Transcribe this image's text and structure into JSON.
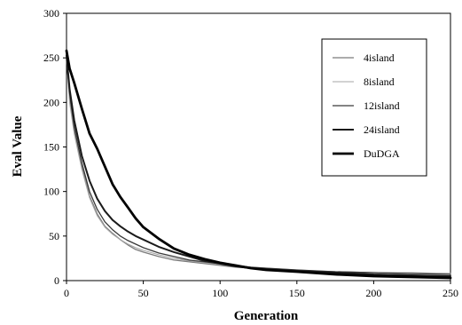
{
  "chart_data": {
    "type": "line",
    "xlabel": "Generation",
    "ylabel": "Eval Value",
    "xlim": [
      0,
      250
    ],
    "ylim": [
      0,
      300
    ],
    "xticks": [
      0,
      50,
      100,
      150,
      200,
      250
    ],
    "yticks": [
      0,
      50,
      100,
      150,
      200,
      250,
      300
    ],
    "grid": false,
    "legend_position": "top-right",
    "x": [
      0,
      2,
      5,
      10,
      15,
      20,
      25,
      30,
      35,
      40,
      45,
      50,
      60,
      70,
      80,
      90,
      100,
      110,
      120,
      130,
      140,
      150,
      175,
      200,
      225,
      250
    ],
    "series": [
      {
        "name": "4island",
        "color": "#7a7a7a",
        "width": 1.3,
        "values": [
          255,
          205,
          168,
          128,
          95,
          75,
          61,
          53,
          46,
          40,
          35,
          32,
          27,
          23,
          21,
          19,
          17,
          15,
          14,
          13,
          12,
          11,
          10,
          9,
          8,
          8
        ]
      },
      {
        "name": "8island",
        "color": "#a5a5a5",
        "width": 1.1,
        "values": [
          250,
          200,
          165,
          125,
          93,
          73,
          60,
          52,
          46,
          41,
          37,
          34,
          29,
          25,
          22,
          20,
          18,
          16,
          15,
          14,
          13,
          12,
          10,
          9,
          9,
          8
        ]
      },
      {
        "name": "12island",
        "color": "#3a3a3a",
        "width": 1.3,
        "values": [
          248,
          210,
          172,
          132,
          100,
          80,
          66,
          57,
          50,
          45,
          41,
          37,
          31,
          27,
          23,
          21,
          19,
          17,
          15,
          14,
          13,
          12,
          10,
          9,
          8,
          7
        ]
      },
      {
        "name": "24island",
        "color": "#1a1a1a",
        "width": 2.0,
        "values": [
          253,
          215,
          180,
          140,
          112,
          92,
          78,
          68,
          61,
          55,
          50,
          46,
          38,
          32,
          27,
          22,
          19,
          16,
          14,
          13,
          12,
          11,
          9,
          7,
          6,
          5
        ]
      },
      {
        "name": "DuDGA",
        "color": "#000000",
        "width": 2.8,
        "values": [
          258,
          238,
          222,
          193,
          165,
          148,
          128,
          108,
          94,
          82,
          70,
          60,
          47,
          36,
          29,
          24,
          20,
          17,
          14,
          12,
          11,
          10,
          7,
          5,
          4,
          3
        ]
      }
    ]
  }
}
